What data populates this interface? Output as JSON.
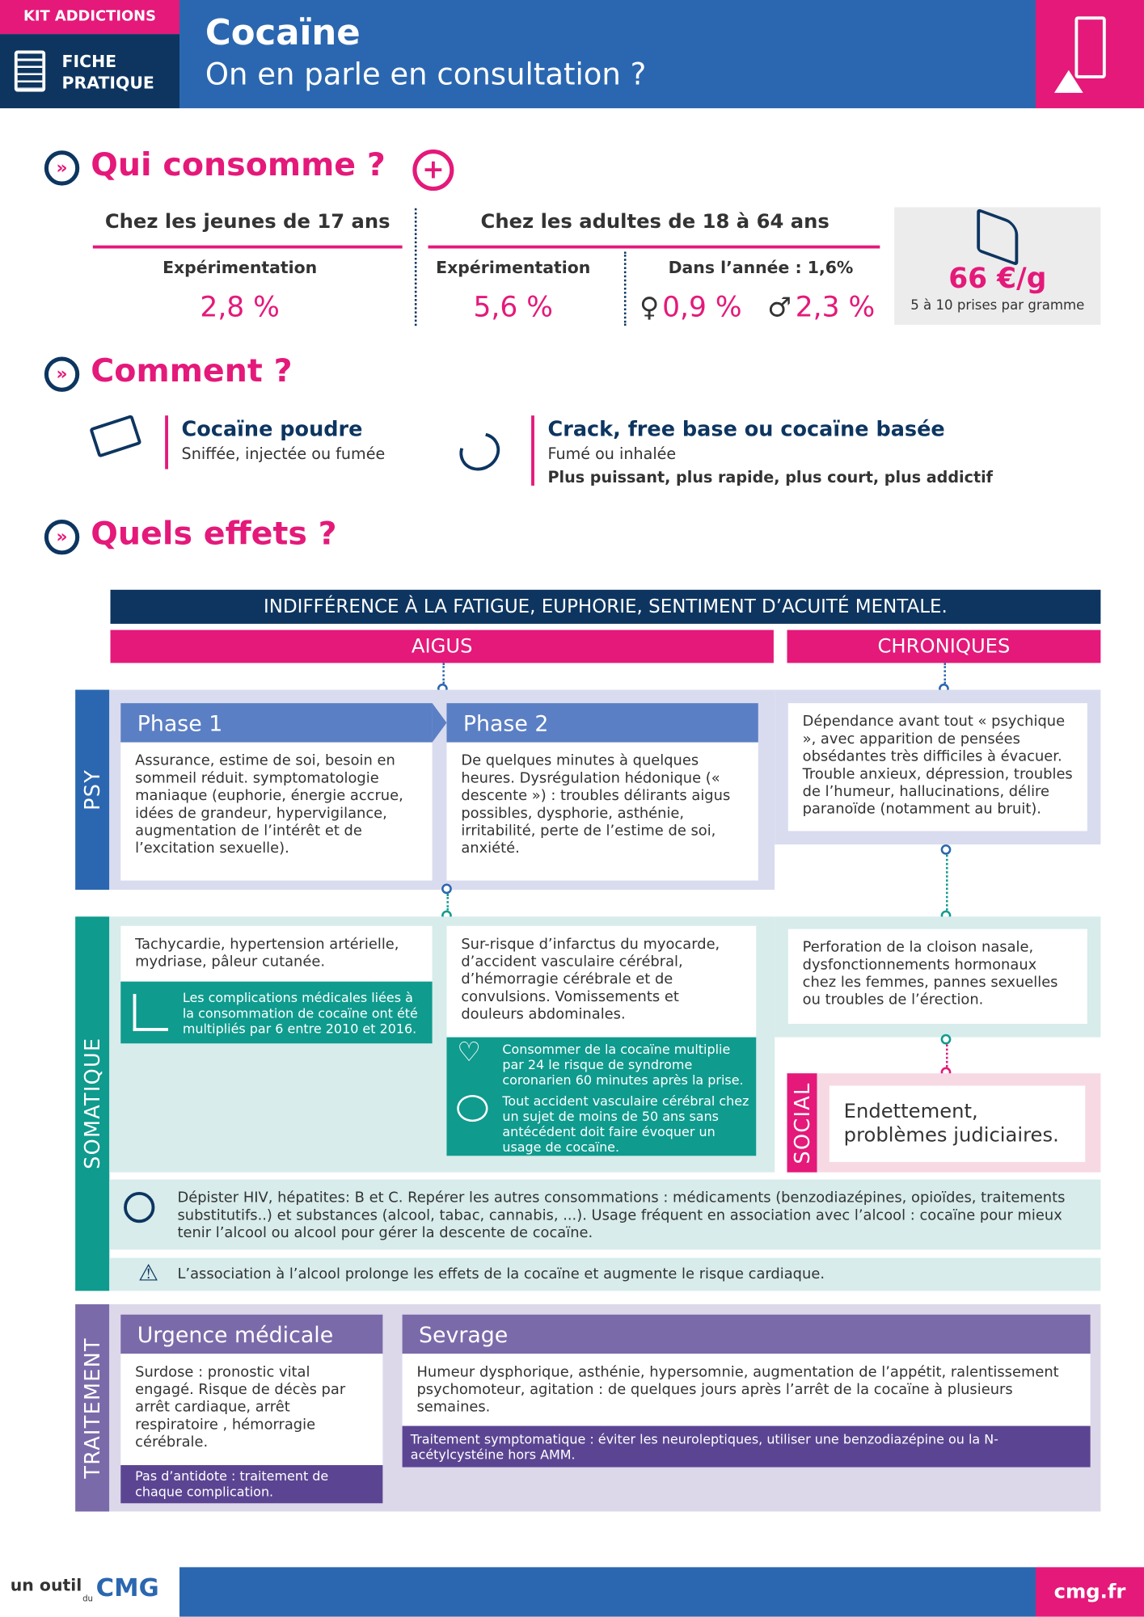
{
  "header": {
    "kit": "KIT ADDICTIONS",
    "fiche": "FICHE\nPRATIQUE",
    "title": "Cocaïne",
    "subtitle": "On en parle en consultation ?"
  },
  "qui": {
    "title": "Qui consomme ?",
    "jeunes": {
      "heading": "Chez les jeunes de 17 ans",
      "label": "Expérimentation",
      "value": "2,8 %"
    },
    "adultes": {
      "heading": "Chez les adultes de 18 à 64 ans",
      "label": "Expérimentation",
      "value": "5,6 %",
      "annee_label": "Dans l’année : 1,6%",
      "female": "0,9 %",
      "male": "2,3 %"
    },
    "prix": {
      "value": "66 €/g",
      "note": "5 à 10 prises par gramme"
    }
  },
  "comment": {
    "title": "Comment ?",
    "poudre": {
      "title": "Cocaïne poudre",
      "desc": "Sniffée, injectée ou fumée"
    },
    "crack": {
      "title": "Crack, free base ou cocaïne basée",
      "desc": "Fumé ou inhalée",
      "note": "Plus puissant, plus rapide, plus court, plus addictif"
    }
  },
  "effets": {
    "title": "Quels effets ?",
    "banner": "INDIFFÉRENCE À LA FATIGUE, EUPHORIE, SENTIMENT D’ACUITÉ MENTALE.",
    "aigus": "AIGUS",
    "chroniques": "CHRONIQUES",
    "psy": {
      "label": "PSY",
      "phase1_title": "Phase 1",
      "phase1": "Assurance, estime de soi, besoin en sommeil réduit. symptomatologie maniaque (euphorie, énergie accrue, idées de grandeur, hypervigilance, augmentation de l’intérêt et de l’excitation sexuelle).",
      "phase2_title": "Phase 2",
      "phase2": "De quelques minutes à quelques heures. Dysrégulation hédonique (« descente ») : troubles délirants aigus possibles, dysphorie, asthénie, irritabilité, perte de l’estime de soi, anxiété.",
      "chronique": "Dépendance avant tout « psychique », avec apparition de pensées obsédantes très difficiles à évacuer. Trouble anxieux, dépression, troubles de l’humeur, hallucinations, délire paranoïde (notamment au bruit)."
    },
    "somatique": {
      "label": "SOMATIQUE",
      "col1": "Tachycardie, hypertension artérielle, mydriase, pâleur cutanée.",
      "col1_note": "Les complications médicales liées à la consommation de cocaïne ont été multipliés par 6 entre 2010 et 2016.",
      "col2": "Sur-risque d’infarctus du myocarde, d’accident vasculaire cérébral, d’hémorragie cérébrale et de convulsions. Vomissements et douleurs abdominales.",
      "col2_note1": "Consommer de la cocaïne multiplie par 24 le risque de syndrome coronarien 60 minutes après la prise.",
      "col2_note2": "Tout accident vasculaire cérébral chez un sujet de moins de 50 ans sans antécédent doit faire évoquer un usage de cocaïne.",
      "chronique": "Perforation de la cloison nasale, dysfonctionnements hormonaux chez les femmes, pannes sexuelles ou troubles de l’érection.",
      "depister": "Dépister HIV, hépatites: B et C. Repérer les autres consommations : médicaments (benzodiazépines, opioïdes, traitements substitutifs..) et substances (alcool, tabac, cannabis, ...). Usage fréquent en association avec l’alcool : cocaïne pour mieux tenir l’alcool ou alcool pour gérer la descente de cocaïne.",
      "alerte": "L’association à l’alcool prolonge les effets de la cocaïne et augmente le risque cardiaque."
    },
    "social": {
      "label": "SOCIAL",
      "text": "Endettement, problèmes judiciaires."
    },
    "traitement": {
      "label": "TRAITEMENT",
      "urgence_title": "Urgence médicale",
      "urgence": "Surdose : pronostic vital engagé. Risque  de décès par arrêt cardiaque,  arrêt respiratoire , hémorragie cérébrale.",
      "urgence_note": "Pas d’antidote : traitement de chaque complication.",
      "sevrage_title": "Sevrage",
      "sevrage": "Humeur dysphorique, asthénie, hypersomnie, augmentation de l’appétit, ralentissement psychomoteur, agitation :  de quelques jours après l’arrêt de la cocaïne à plusieurs semaines.",
      "sevrage_note": "Traitement symptomatique : éviter les neuroleptiques, utiliser une benzodiazépine ou la N-acétylcystéine hors AMM."
    }
  },
  "footer": {
    "outil": "un outil",
    "du": "du",
    "logo": "CMG",
    "site": "cmg.fr"
  },
  "colors": {
    "navy": "#0d3560",
    "blue": "#2b67b0",
    "pink": "#e4197a",
    "teal": "#0f9b8e",
    "purple": "#7b6aa9"
  }
}
